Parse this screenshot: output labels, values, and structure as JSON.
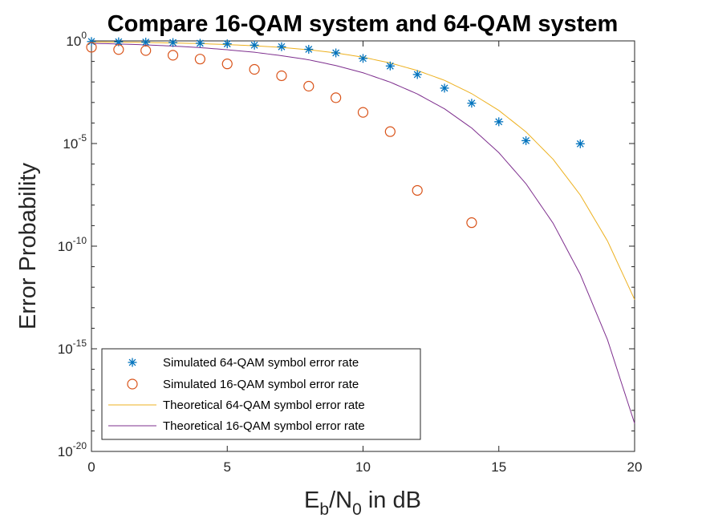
{
  "chart_data": {
    "type": "line",
    "title": "Compare 16-QAM system and 64-QAM system",
    "xlabel": {
      "prefix": "E",
      "sub1": "b",
      "mid": "/N",
      "sub2": "0",
      "suffix": " in dB"
    },
    "ylabel": "Error Probability",
    "xlim": [
      0,
      20
    ],
    "ylim": [
      1e-20,
      1
    ],
    "yscale": "log",
    "grid": false,
    "legend_position": "bottom-left",
    "xticks": [
      "0",
      "5",
      "10",
      "15",
      "20"
    ],
    "xtick_values": [
      0,
      5,
      10,
      15,
      20
    ],
    "yticks": [
      {
        "base": "10",
        "exp": "0",
        "value": 0
      },
      {
        "base": "10",
        "exp": "-5",
        "value": -5
      },
      {
        "base": "10",
        "exp": "-10",
        "value": -10
      },
      {
        "base": "10",
        "exp": "-15",
        "value": -15
      },
      {
        "base": "10",
        "exp": "-20",
        "value": -20
      }
    ],
    "series": [
      {
        "name": "Simulated 64-QAM symbol error rate",
        "style": "marker-star",
        "color": "#0072BD",
        "x": [
          0,
          1,
          2,
          3,
          4,
          5,
          6,
          7,
          8,
          9,
          10,
          11,
          12,
          13,
          14,
          15,
          16,
          18
        ],
        "y": [
          0.93,
          0.9,
          0.87,
          0.83,
          0.77,
          0.72,
          0.62,
          0.52,
          0.39,
          0.26,
          0.14,
          0.06,
          0.023,
          0.005,
          0.00092,
          0.000115,
          1.38e-05,
          9.7e-06
        ]
      },
      {
        "name": "Simulated 16-QAM symbol error rate",
        "style": "marker-circle",
        "color": "#D95319",
        "x": [
          0,
          1,
          2,
          3,
          4,
          5,
          6,
          7,
          8,
          9,
          10,
          11,
          12,
          14
        ],
        "y": [
          0.49,
          0.38,
          0.34,
          0.2,
          0.13,
          0.076,
          0.041,
          0.02,
          0.0062,
          0.0017,
          0.00033,
          3.8e-05,
          5.2e-08,
          1.4e-09
        ]
      },
      {
        "name": "Theoretical 64-QAM symbol error rate",
        "style": "line",
        "color": "#EDB120",
        "x": [
          0,
          1,
          2,
          3,
          4,
          5,
          6,
          7,
          8,
          9,
          10,
          11,
          12,
          13,
          14,
          15,
          16,
          17,
          18,
          19,
          20
        ],
        "y": [
          0.89,
          0.87,
          0.84,
          0.79,
          0.74,
          0.66,
          0.58,
          0.48,
          0.37,
          0.26,
          0.16,
          0.084,
          0.036,
          0.012,
          0.0027,
          0.00041,
          3.7e-05,
          1.7e-06,
          3.1e-08,
          1.8e-10,
          2.5e-13
        ]
      },
      {
        "name": "Theoretical 16-QAM symbol error rate",
        "style": "line",
        "color": "#7E2F8E",
        "x": [
          0,
          1,
          2,
          3,
          4,
          5,
          6,
          7,
          8,
          9,
          10,
          11,
          12,
          13,
          14,
          15,
          16,
          17,
          18,
          19,
          20
        ],
        "y": [
          0.76,
          0.71,
          0.64,
          0.56,
          0.47,
          0.37,
          0.28,
          0.19,
          0.12,
          0.063,
          0.028,
          0.0098,
          0.0026,
          0.00049,
          5.7e-05,
          3.6e-06,
          1.1e-07,
          1.3e-09,
          4.2e-12,
          2.8e-15,
          2.3e-19
        ]
      }
    ]
  }
}
